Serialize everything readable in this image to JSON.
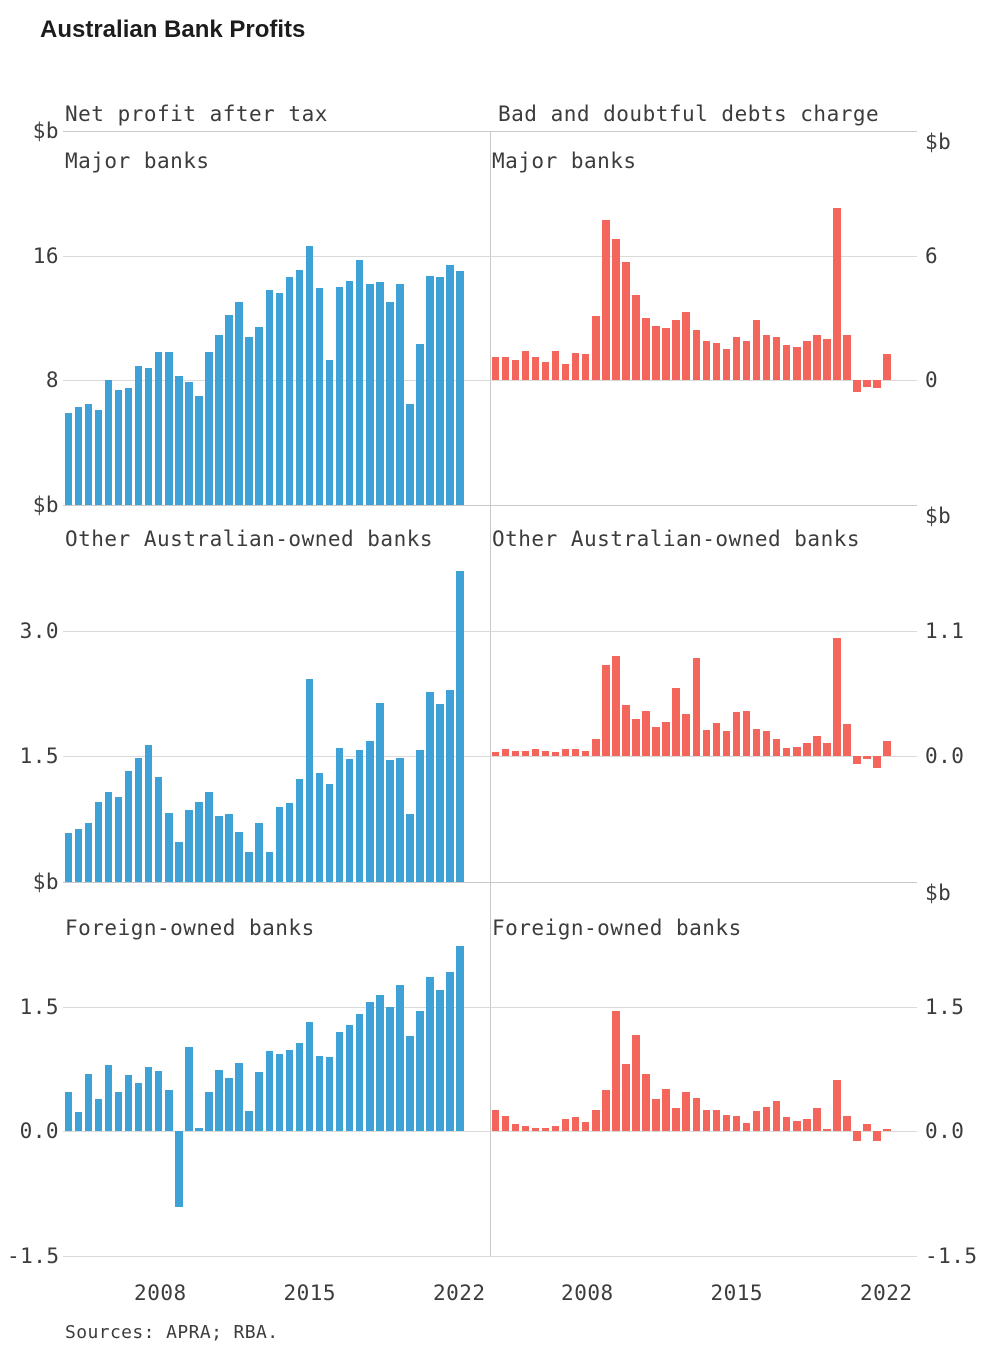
{
  "title": "Australian Bank Profits",
  "source_note": "Sources: APRA; RBA.",
  "unit_label": "$b",
  "columns": [
    {
      "header": "Net profit after tax"
    },
    {
      "header": "Bad and doubtful debts charge"
    }
  ],
  "x_tick_labels": [
    "2008",
    "2015",
    "2022"
  ],
  "colors": {
    "npat_bar": "#3FA2D6",
    "bdd_bar": "#F4655C",
    "gridline": "#dadada",
    "frame": "#c9c9c9",
    "text": "#3c3c3c",
    "title_text": "#1c1c1c"
  },
  "chart_data": [
    {
      "type": "bar",
      "measure": "Net profit after tax",
      "group": "Major banks",
      "unit": "$b",
      "color_key": "npat_bar",
      "frequency": "semiannual",
      "x_tick_labels": [
        "2008",
        "2015",
        "2022"
      ],
      "ylim": [
        0,
        24
      ],
      "yticks": [
        {
          "v": 16,
          "label": "16"
        },
        {
          "v": 8,
          "label": "8"
        }
      ],
      "values": [
        5.9,
        6.3,
        6.5,
        6.1,
        8.0,
        7.4,
        7.5,
        8.9,
        8.8,
        9.8,
        9.8,
        8.3,
        7.9,
        7.0,
        9.8,
        10.9,
        12.2,
        13.0,
        10.8,
        11.4,
        13.8,
        13.6,
        14.6,
        15.1,
        16.6,
        13.9,
        9.3,
        14.0,
        14.4,
        15.7,
        14.2,
        14.3,
        13.0,
        14.2,
        6.5,
        10.3,
        14.7,
        14.6,
        15.4,
        15.0
      ]
    },
    {
      "type": "bar",
      "measure": "Bad and doubtful debts charge",
      "group": "Major banks",
      "unit": "$b",
      "color_key": "bdd_bar",
      "frequency": "semiannual",
      "x_tick_labels": [
        "2008",
        "2015",
        "2022"
      ],
      "ylim": [
        -6,
        12
      ],
      "yticks": [
        {
          "v": 6,
          "label": "6"
        },
        {
          "v": 0,
          "label": "0"
        }
      ],
      "values": [
        1.1,
        1.1,
        1.0,
        1.4,
        1.1,
        0.9,
        1.4,
        0.8,
        1.3,
        1.25,
        3.1,
        7.7,
        6.8,
        5.7,
        4.1,
        3.0,
        2.6,
        2.5,
        2.9,
        3.3,
        2.4,
        1.9,
        1.8,
        1.5,
        2.1,
        1.9,
        2.9,
        2.2,
        2.1,
        1.7,
        1.6,
        1.9,
        2.2,
        2.0,
        8.3,
        2.2,
        -0.55,
        -0.3,
        -0.35,
        1.25
      ]
    },
    {
      "type": "bar",
      "measure": "Net profit after tax",
      "group": "Other Australian-owned banks",
      "unit": "$b",
      "color_key": "npat_bar",
      "frequency": "semiannual",
      "x_tick_labels": [
        "2008",
        "2015",
        "2022"
      ],
      "ylim": [
        0,
        4.5
      ],
      "yticks": [
        {
          "v": 3.0,
          "label": "3.0"
        },
        {
          "v": 1.5,
          "label": "1.5"
        }
      ],
      "values": [
        0.58,
        0.63,
        0.71,
        0.96,
        1.07,
        1.01,
        1.33,
        1.48,
        1.63,
        1.25,
        0.82,
        0.48,
        0.86,
        0.96,
        1.08,
        0.79,
        0.81,
        0.6,
        0.36,
        0.71,
        0.36,
        0.89,
        0.94,
        1.23,
        2.42,
        1.3,
        1.17,
        1.6,
        1.47,
        1.58,
        1.68,
        2.14,
        1.46,
        1.48,
        0.81,
        1.57,
        2.27,
        2.13,
        2.29,
        3.71
      ]
    },
    {
      "type": "bar",
      "measure": "Bad and doubtful debts charge",
      "group": "Other Australian-owned banks",
      "unit": "$b",
      "color_key": "bdd_bar",
      "frequency": "semiannual",
      "x_tick_labels": [
        "2008",
        "2015",
        "2022"
      ],
      "ylim": [
        -1.1,
        2.2
      ],
      "yticks": [
        {
          "v": 1.1,
          "label": "1.1"
        },
        {
          "v": 0,
          "label": "0.0"
        }
      ],
      "values": [
        0.04,
        0.06,
        0.05,
        0.05,
        0.06,
        0.05,
        0.04,
        0.06,
        0.06,
        0.05,
        0.15,
        0.8,
        0.88,
        0.45,
        0.33,
        0.4,
        0.26,
        0.3,
        0.6,
        0.37,
        0.86,
        0.23,
        0.29,
        0.22,
        0.39,
        0.4,
        0.24,
        0.22,
        0.15,
        0.07,
        0.08,
        0.12,
        0.18,
        0.12,
        1.04,
        0.28,
        -0.07,
        -0.02,
        -0.1,
        0.13
      ]
    },
    {
      "type": "bar",
      "measure": "Net profit after tax",
      "group": "Foreign-owned banks",
      "unit": "$b",
      "color_key": "npat_bar",
      "frequency": "semiannual",
      "x_tick_labels": [
        "2008",
        "2015",
        "2022"
      ],
      "ylim": [
        -1.5,
        3.0
      ],
      "yticks": [
        {
          "v": 1.5,
          "label": "1.5"
        },
        {
          "v": 0,
          "label": "0.0"
        },
        {
          "v": -1.5,
          "label": "-1.5"
        }
      ],
      "values": [
        0.47,
        0.23,
        0.69,
        0.39,
        0.8,
        0.47,
        0.67,
        0.58,
        0.77,
        0.72,
        0.49,
        -0.92,
        1.01,
        0.04,
        0.47,
        0.73,
        0.64,
        0.82,
        0.24,
        0.71,
        0.96,
        0.93,
        0.98,
        1.06,
        1.31,
        0.9,
        0.89,
        1.19,
        1.28,
        1.41,
        1.56,
        1.64,
        1.49,
        1.76,
        1.15,
        1.45,
        1.85,
        1.7,
        1.92,
        2.23
      ]
    },
    {
      "type": "bar",
      "measure": "Bad and doubtful debts charge",
      "group": "Foreign-owned banks",
      "unit": "$b",
      "color_key": "bdd_bar",
      "frequency": "semiannual",
      "x_tick_labels": [
        "2008",
        "2015",
        "2022"
      ],
      "ylim": [
        -1.5,
        3.0
      ],
      "yticks": [
        {
          "v": 1.5,
          "label": "1.5"
        },
        {
          "v": 0,
          "label": "0.0"
        },
        {
          "v": -1.5,
          "label": "-1.5"
        }
      ],
      "values": [
        0.25,
        0.18,
        0.08,
        0.06,
        0.04,
        0.04,
        0.06,
        0.15,
        0.17,
        0.11,
        0.25,
        0.49,
        1.45,
        0.81,
        1.16,
        0.69,
        0.38,
        0.51,
        0.28,
        0.47,
        0.4,
        0.25,
        0.25,
        0.19,
        0.18,
        0.1,
        0.24,
        0.29,
        0.36,
        0.17,
        0.12,
        0.15,
        0.28,
        0.02,
        0.62,
        0.18,
        -0.12,
        0.08,
        -0.12,
        0.03
      ]
    }
  ]
}
